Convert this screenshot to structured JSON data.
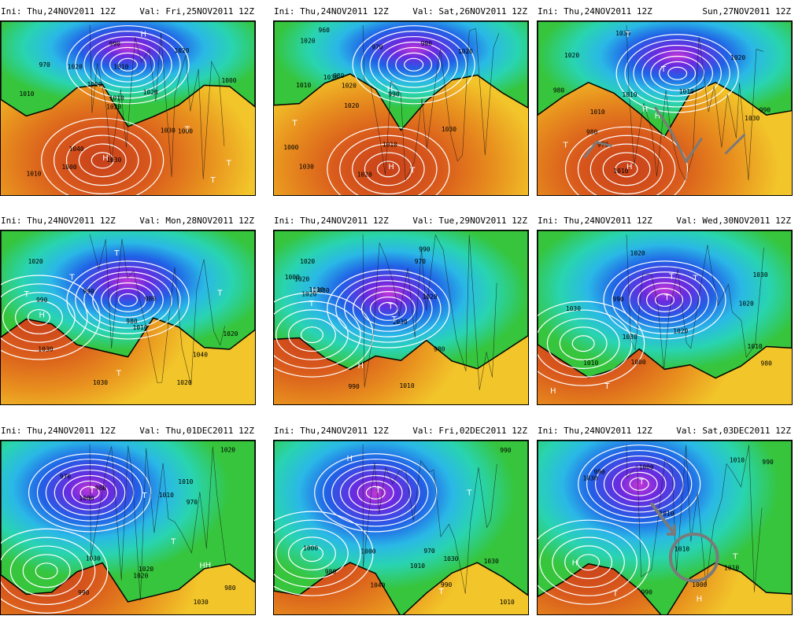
{
  "colors": {
    "deep_red": "#c8401a",
    "orange": "#e8901e",
    "yellow": "#f2c52a",
    "green": "#36c53c",
    "teal": "#29d4b0",
    "cyan": "#2ab8e6",
    "blue": "#2060e6",
    "violet": "#6a2ae0",
    "magenta": "#c038d8",
    "isobar": "#ffffff",
    "annotation": "#7a7a7a"
  },
  "panels": [
    {
      "ini": "Ini: Thu,24NOV2011 12Z",
      "val": "Val: Fri,25NOV2011 12Z",
      "pressure_labels": [
        "1000",
        "1010",
        "1000",
        "1010",
        "1020",
        "1000",
        "970",
        "990",
        "1010",
        "1030",
        "1000",
        "1020",
        "1030",
        "1010",
        "1020",
        "1020",
        "1040"
      ],
      "centers": [
        "H",
        "T",
        "T",
        "T",
        "H"
      ]
    },
    {
      "ini": "Ini: Thu,24NOV2011 12Z",
      "val": "Val: Sat,26NOV2011 12Z",
      "pressure_labels": [
        "1020",
        "1010",
        "980",
        "1020",
        "960",
        "990",
        "970",
        "990",
        "1000",
        "1010",
        "1020",
        "1030",
        "1020",
        "1030",
        "1020",
        "1030"
      ],
      "centers": [
        "H",
        "T",
        "H",
        "T"
      ]
    },
    {
      "ini": "Ini: Thu,24NOV2011 12Z",
      "val": "Sun,27NOV2011 12Z",
      "pressure_labels": [
        "1010",
        "1030",
        "990",
        "980",
        "980",
        "970",
        "1010",
        "1010",
        "1020",
        "1010",
        "1030",
        "1020"
      ],
      "centers": [
        "H",
        "T",
        "H",
        "T",
        "T",
        "H"
      ]
    },
    {
      "ini": "Ini: Thu,24NOV2011 12Z",
      "val": "Val: Mon,28NOV2011 12Z",
      "pressure_labels": [
        "1030",
        "1020",
        "990",
        "1010",
        "990",
        "1040",
        "980",
        "980",
        "1020",
        "1030",
        "1020"
      ],
      "centers": [
        "H",
        "T",
        "T",
        "T",
        "T",
        "T"
      ]
    },
    {
      "ini": "Ini: Thu,24NOV2011 12Z",
      "val": "Val: Tue,29NOV2011 12Z",
      "pressure_labels": [
        "990",
        "1020",
        "990",
        "970",
        "980",
        "1000",
        "1010",
        "1020",
        "1030",
        "1010",
        "1020",
        "1020",
        "1030"
      ],
      "centers": [
        "T",
        "H",
        "T",
        "H",
        "T"
      ]
    },
    {
      "ini": "Ini: Thu,24NOV2011 12Z",
      "val": "Val: Wed,30NOV2011 12Z",
      "pressure_labels": [
        "980",
        "1030",
        "990",
        "1010",
        "1020",
        "1000",
        "1010",
        "1020",
        "1030",
        "1030",
        "1020"
      ],
      "centers": [
        "T",
        "T",
        "H",
        "T",
        "T"
      ]
    },
    {
      "ini": "Ini: Thu,24NOV2011 12Z",
      "val": "Val: Thu,01DEC2011 12Z",
      "pressure_labels": [
        "1020",
        "980",
        "970",
        "1010",
        "970",
        "980",
        "990",
        "1020",
        "1000",
        "1030",
        "1010",
        "1030",
        "1020"
      ],
      "centers": [
        "T",
        "T",
        "H",
        "H",
        "T"
      ]
    },
    {
      "ini": "Ini: Thu,24NOV2011 12Z",
      "val": "Val: Fri,02DEC2011 12Z",
      "pressure_labels": [
        "970",
        "980",
        "990",
        "1000",
        "1010",
        "1030",
        "1040",
        "1030",
        "990",
        "1000",
        "1010"
      ],
      "centers": [
        "T",
        "H",
        "T",
        "T"
      ]
    },
    {
      "ini": "Ini: Thu,24NOV2011 12Z",
      "val": "Val: Sat,03DEC2011 12Z",
      "pressure_labels": [
        "1000",
        "990",
        "990",
        "1010",
        "1000",
        "1010",
        "990",
        "1030",
        "1010",
        "1010"
      ],
      "centers": [
        "T",
        "T",
        "H",
        "T",
        "H"
      ]
    }
  ]
}
